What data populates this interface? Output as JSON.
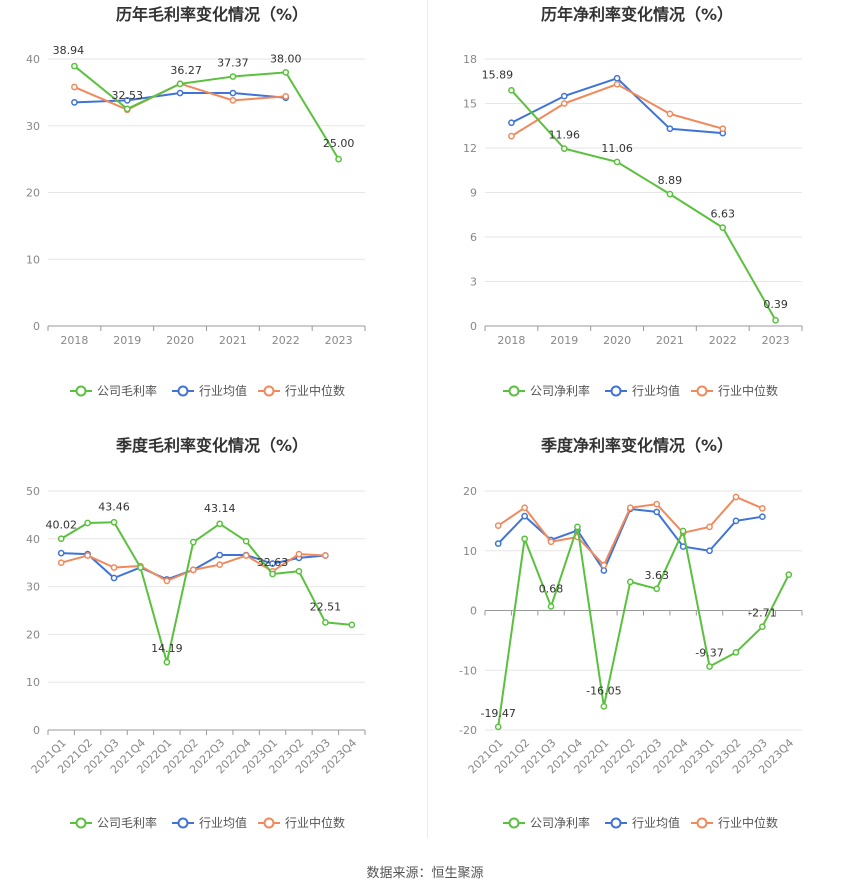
{
  "source_label": "数据来源：恒生聚源",
  "chart_data": [
    {
      "type": "line",
      "title": "历年毛利率变化情况（%）",
      "categories": [
        "2018",
        "2019",
        "2020",
        "2021",
        "2022",
        "2023"
      ],
      "ylim": [
        0,
        40
      ],
      "yticks": [
        0,
        10,
        20,
        30,
        40
      ],
      "grid": true,
      "legend_position": "bottom",
      "series": [
        {
          "name": "公司毛利率",
          "color": "#5ac13e",
          "values": [
            38.94,
            32.53,
            36.27,
            37.37,
            38.0,
            25.0
          ],
          "labels": [
            "38.94",
            "32.53",
            "36.27",
            "37.37",
            "38.00",
            "25.00"
          ]
        },
        {
          "name": "行业均值",
          "color": "#3f73d6",
          "values": [
            33.5,
            33.8,
            34.9,
            34.9,
            34.2,
            null
          ]
        },
        {
          "name": "行业中位数",
          "color": "#f08a5d",
          "values": [
            35.8,
            32.4,
            36.3,
            33.8,
            34.4,
            null
          ]
        }
      ]
    },
    {
      "type": "line",
      "title": "历年净利率变化情况（%）",
      "categories": [
        "2018",
        "2019",
        "2020",
        "2021",
        "2022",
        "2023"
      ],
      "ylim": [
        0,
        18
      ],
      "yticks": [
        0,
        3,
        6,
        9,
        12,
        15,
        18
      ],
      "grid": true,
      "legend_position": "bottom",
      "series": [
        {
          "name": "公司净利率",
          "color": "#5ac13e",
          "values": [
            15.89,
            11.96,
            11.06,
            8.89,
            6.63,
            0.39
          ],
          "labels": [
            "15.89",
            "11.96",
            "11.06",
            "8.89",
            "6.63",
            "0.39"
          ]
        },
        {
          "name": "行业均值",
          "color": "#3f73d6",
          "values": [
            13.7,
            15.5,
            16.7,
            13.3,
            13.0,
            null
          ]
        },
        {
          "name": "行业中位数",
          "color": "#f08a5d",
          "values": [
            12.8,
            15.0,
            16.3,
            14.3,
            13.3,
            null
          ]
        }
      ]
    },
    {
      "type": "line",
      "title": "季度毛利率变化情况（%）",
      "categories": [
        "2021Q1",
        "2021Q2",
        "2021Q3",
        "2021Q4",
        "2022Q1",
        "2022Q2",
        "2022Q3",
        "2022Q4",
        "2023Q1",
        "2023Q2",
        "2023Q3",
        "2023Q4"
      ],
      "ylim": [
        0,
        50
      ],
      "yticks": [
        0,
        10,
        20,
        30,
        40,
        50
      ],
      "grid": true,
      "legend_position": "bottom",
      "series": [
        {
          "name": "公司毛利率",
          "color": "#5ac13e",
          "values": [
            40.02,
            43.3,
            43.46,
            34.0,
            14.19,
            39.3,
            43.14,
            39.5,
            32.63,
            33.2,
            22.51,
            22.0
          ],
          "labels": [
            "40.02",
            "",
            "43.46",
            "",
            "14.19",
            "",
            "43.14",
            "",
            "32.63",
            "",
            "22.51",
            ""
          ]
        },
        {
          "name": "行业均值",
          "color": "#3f73d6",
          "values": [
            37.0,
            36.8,
            31.8,
            34.0,
            31.5,
            33.5,
            36.6,
            36.6,
            34.8,
            36.0,
            36.5,
            null
          ]
        },
        {
          "name": "行业中位数",
          "color": "#f08a5d",
          "values": [
            35.0,
            36.5,
            34.0,
            34.3,
            31.2,
            33.5,
            34.6,
            36.5,
            33.2,
            36.8,
            36.5,
            null
          ]
        }
      ]
    },
    {
      "type": "line",
      "title": "季度净利率变化情况（%）",
      "categories": [
        "2021Q1",
        "2021Q2",
        "2021Q3",
        "2021Q4",
        "2022Q1",
        "2022Q2",
        "2022Q3",
        "2022Q4",
        "2023Q1",
        "2023Q2",
        "2023Q3",
        "2023Q4"
      ],
      "ylim": [
        -20,
        20
      ],
      "yticks": [
        -20,
        -10,
        0,
        10,
        20
      ],
      "grid": true,
      "legend_position": "bottom",
      "series": [
        {
          "name": "公司净利率",
          "color": "#5ac13e",
          "values": [
            -19.47,
            12.0,
            0.68,
            14.0,
            -16.05,
            4.8,
            3.63,
            13.3,
            -9.37,
            -7.0,
            -2.71,
            6.0
          ],
          "labels": [
            "-19.47",
            "",
            "0.68",
            "",
            "-16.05",
            "",
            "3.63",
            "",
            "-9.37",
            "",
            "-2.71",
            ""
          ]
        },
        {
          "name": "行业均值",
          "color": "#3f73d6",
          "values": [
            11.2,
            15.8,
            11.8,
            13.4,
            6.7,
            17.0,
            16.5,
            10.7,
            10.0,
            15.0,
            15.7,
            null
          ]
        },
        {
          "name": "行业中位数",
          "color": "#f08a5d",
          "values": [
            14.2,
            17.2,
            11.5,
            12.3,
            7.6,
            17.2,
            17.8,
            13.0,
            14.0,
            19.0,
            17.1,
            null
          ]
        }
      ]
    }
  ]
}
